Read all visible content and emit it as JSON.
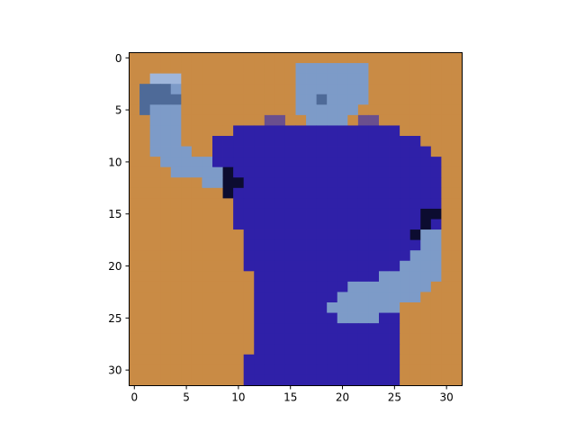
{
  "chart_data": {
    "type": "heatmap",
    "title": "",
    "xlabel": "",
    "ylabel": "",
    "grid": false,
    "xlim": [
      -0.5,
      31.5
    ],
    "ylim": [
      31.5,
      -0.5
    ],
    "y_inverted": true,
    "image_size": [
      32,
      32
    ],
    "x_ticks": [
      0,
      5,
      10,
      15,
      20,
      25,
      30
    ],
    "y_ticks": [
      0,
      5,
      10,
      15,
      20,
      25,
      30
    ],
    "x_tick_labels": [
      "0",
      "5",
      "10",
      "15",
      "20",
      "25",
      "30"
    ],
    "y_tick_labels": [
      "0",
      "5",
      "10",
      "15",
      "20",
      "25",
      "30"
    ],
    "palette": {
      "background": "#c98b45",
      "background_dark": "#b97a3a",
      "shirt": "#2f20a8",
      "shirt_dark": "#1d1580",
      "shirt_light": "#4a3ccc",
      "skin": "#7d9bc8",
      "skin_dark": "#4e6a98",
      "skin_light": "#9fb6db",
      "shadow": "#0c0c30",
      "edge_purple": "#6a4f8e",
      "edge_brown": "#8a6a56"
    },
    "rows": [
      "BBBBBBBBBBBBBBBBBBBBBBBBBBBBBBBB",
      "BBBBBBBBBBBBBBBBSSSSSSSBBBBBBBBB",
      "BBLLLBBBBBBBBBBBSSSSSSSBBBBBBBBB",
      "BKDKSBBBBBBBBBBBSSSSSSSBBBBBBBBB",
      "BKDDKBBBBBBBBBBBSSDSSSSBBBBBBBBB",
      "BKSSSBBBBBBBBBBBSSSSSSBBBBBBBBBB",
      "BBSSSBBBBBBBBEEBBSSSSBEEBBBBBBBB",
      "BBSSSBBBBBAAAAAAAAAAAAAAAABBBBBB",
      "BBSSSBBBAAAAAAAAAAAAAAAAAAAABBBB",
      "BBSSSSBBAAAAAAAAAAAAAAAAAAAAABBB",
      "BBBSSSSSAAAAAAAAAAAAAAAAAAAAAABBB",
      "BBBBSSSSSXAAAAAAAAAAAAAAAAAAAABB",
      "BBBBBBBSSXXAAAAAAAAAAAAAAAAAAABB",
      "BBBBBBBBBXAAAAAAAAAAAAAAAAAAAABB",
      "BBBBBBBBBBAAAAAAAAAAAAAAAAAAAABB",
      "BBBBBBBBBBAAAAAAAAAAAAAAAAAAXXBB",
      "BBBBBBBBBBAAAAAAAAAAAAAAAAAAXABB",
      "BBBBBBBBBBBAAAAAAAAAAAAAAAAXSSBB",
      "BBBBBBBBBBBAAAAAAAAAAAAAAAAASSBB",
      "BBBBBBBBBBBAAAAAAAAAAAAAAAASSSBB",
      "BBBBBBBBBBBAAAAAAAAAAAAAAASSSSBB",
      "BBBBBBBBBBBBAAAAAAAAAAAASSSSSSBB",
      "BBBBBBBBBBBBAAAAAAAAASSSSSSSSBBB",
      "BBBBBBBBBBBBAAAAAAAASSSSSSSSBBBB",
      "BBBBBBBBBBBBAAAAAAASSSSSSSBBBBBB",
      "BBBBBBBBBBBBAAAAAAAASSSSAABBBBBB",
      "BBBBBBBBBBBBAAAAAAAAAAAAAABBBBBB",
      "BBBBBBBBBBBBAAAAAAAAAAAAAABBBBBB",
      "BBBBBBBBBBBBAAAAAAAAAAAAAABBBBBB",
      "BBBBBBBBBBBAAAAAAAAAAAAAAABBBBBB",
      "BBBBBBBBBBBAAAAAAAAAAAAAAABBBBBB",
      "BBBBBBBBBBBAAAAAAAAAAAAAAABBBBBB"
    ],
    "legend": {
      "B": "background",
      "A": "shirt",
      "X": "shadow",
      "S": "skin",
      "D": "skin_dark",
      "K": "skin_dark",
      "L": "skin_light",
      "E": "edge_purple"
    }
  }
}
